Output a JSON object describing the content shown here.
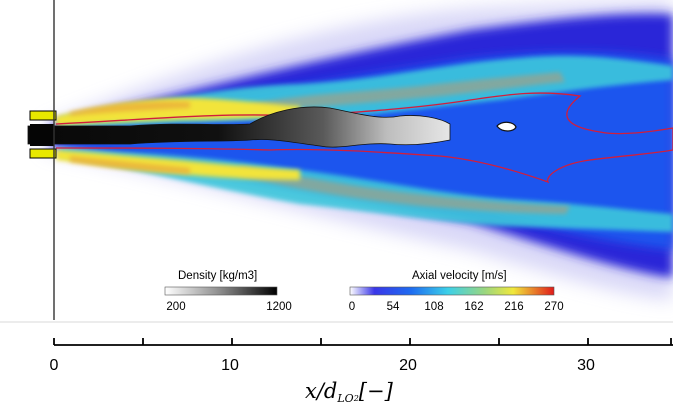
{
  "density_colorbar": {
    "title": "Density [kg/m3]",
    "ticks": [
      "200",
      "1200"
    ],
    "range": [
      200,
      1200
    ],
    "colormap": "grayscale"
  },
  "velocity_colorbar": {
    "title": "Axial velocity [m/s]",
    "ticks": [
      "0",
      "54",
      "108",
      "162",
      "216",
      "270"
    ],
    "range": [
      0,
      270
    ],
    "colormap": "white-blue-cyan-yellow-red"
  },
  "x_axis": {
    "ticks": [
      "0",
      "10",
      "20",
      "30"
    ],
    "label_main": "x/d",
    "label_sub": "LO",
    "label_sub2": "2",
    "label_unit": "[−]"
  },
  "colors": {
    "jet_core": "#0a0a0a",
    "injector_lip": "#e8e800",
    "contour_line": "#d21e3c",
    "background": "#ffffff"
  }
}
